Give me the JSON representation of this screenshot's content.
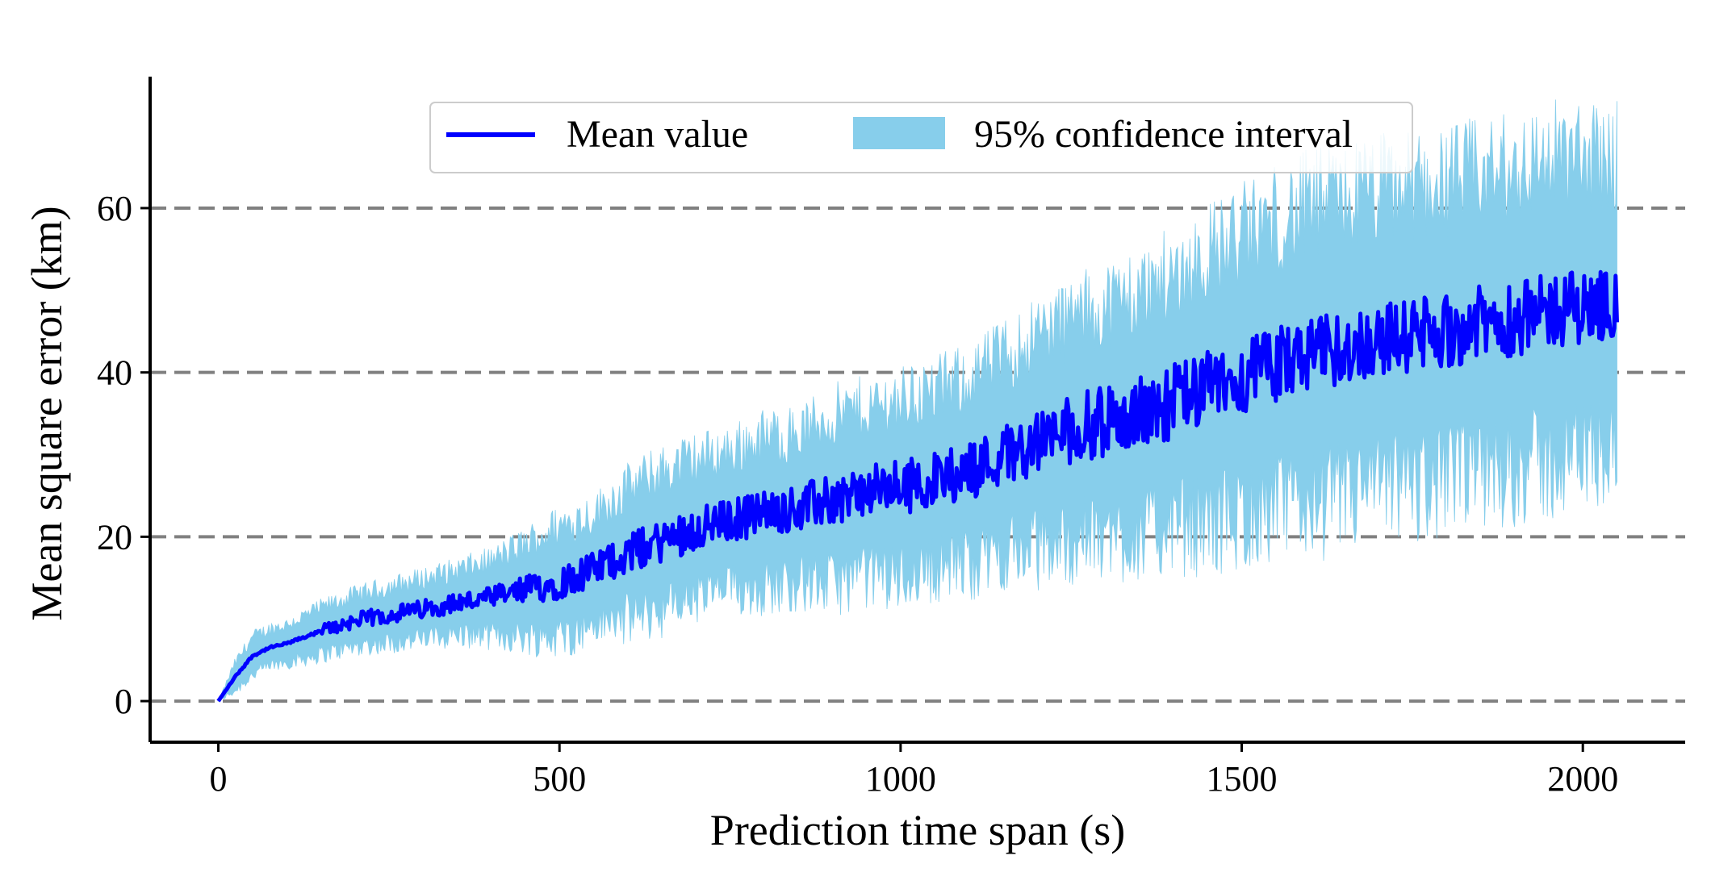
{
  "chart_data": {
    "type": "line",
    "xlabel": "Prediction time span (s)",
    "ylabel": "Mean square error (km)",
    "xlim": [
      -100,
      2150
    ],
    "ylim": [
      -5,
      76
    ],
    "xticks": [
      0,
      500,
      1000,
      1500,
      2000
    ],
    "yticks": [
      0,
      20,
      40,
      60
    ],
    "xtick_labels": [
      "0",
      "500",
      "1000",
      "1500",
      "2000"
    ],
    "ytick_labels": [
      "0",
      "20",
      "40",
      "60"
    ],
    "grid": "horizontal dashed at y ticks",
    "legend": {
      "placement": "top-center",
      "entries": [
        "Mean value",
        "95% confidence interval"
      ]
    },
    "colors": {
      "mean": "#0000ff",
      "ci": "#87ceeb",
      "grid": "#808080"
    },
    "series": [
      {
        "name": "Mean value",
        "kind": "line",
        "color": "#0000ff",
        "x": [
          0,
          25,
          50,
          75,
          100,
          150,
          200,
          250,
          300,
          350,
          400,
          450,
          500,
          550,
          600,
          650,
          700,
          750,
          800,
          850,
          900,
          950,
          1000,
          1050,
          1100,
          1150,
          1200,
          1250,
          1300,
          1350,
          1400,
          1450,
          1500,
          1550,
          1600,
          1650,
          1700,
          1750,
          1800,
          1850,
          1900,
          1950,
          2000,
          2050
        ],
        "values": [
          0,
          3,
          5.5,
          6.5,
          7,
          8.5,
          9.8,
          10.5,
          11.2,
          12,
          12.5,
          13.5,
          14.5,
          16,
          18,
          19.5,
          21,
          22,
          23,
          23.5,
          24.5,
          25.5,
          26,
          27,
          28,
          30,
          31.5,
          33,
          34,
          35,
          36.5,
          38,
          39.5,
          41,
          42,
          43,
          44,
          44.5,
          45,
          46,
          46.5,
          47.5,
          48,
          48.5
        ]
      },
      {
        "name": "95% confidence interval",
        "kind": "band",
        "color": "#87ceeb",
        "x": [
          0,
          25,
          50,
          75,
          100,
          150,
          200,
          250,
          300,
          350,
          400,
          450,
          500,
          550,
          600,
          650,
          700,
          750,
          800,
          850,
          900,
          950,
          1000,
          1050,
          1100,
          1150,
          1200,
          1250,
          1300,
          1350,
          1400,
          1450,
          1500,
          1550,
          1600,
          1650,
          1700,
          1750,
          1800,
          1850,
          1900,
          1950,
          2000,
          2050
        ],
        "lower": [
          0,
          1.5,
          3.5,
          4.5,
          5,
          6,
          7,
          7.5,
          8,
          8.5,
          8.5,
          8.5,
          8.5,
          10,
          11,
          12,
          13.5,
          14.5,
          15,
          15.5,
          15.5,
          16.5,
          16.5,
          17.5,
          18,
          19.5,
          20,
          21,
          21.5,
          22,
          23,
          23.5,
          24.5,
          25.5,
          26,
          27,
          28,
          28.5,
          29,
          30,
          30.5,
          31,
          32,
          33
        ],
        "upper": [
          0,
          4.5,
          7.5,
          8.5,
          9,
          11,
          12.5,
          13.5,
          14.5,
          15.5,
          16.5,
          18.5,
          20.5,
          22,
          25,
          27,
          28.5,
          29.5,
          31,
          31.5,
          33.5,
          34.5,
          35.5,
          36.5,
          38,
          40.5,
          43,
          45,
          46.5,
          48,
          50,
          52.5,
          54.5,
          56.5,
          58,
          59,
          60,
          60.5,
          61,
          62,
          62.5,
          64,
          64,
          64
        ]
      }
    ]
  }
}
